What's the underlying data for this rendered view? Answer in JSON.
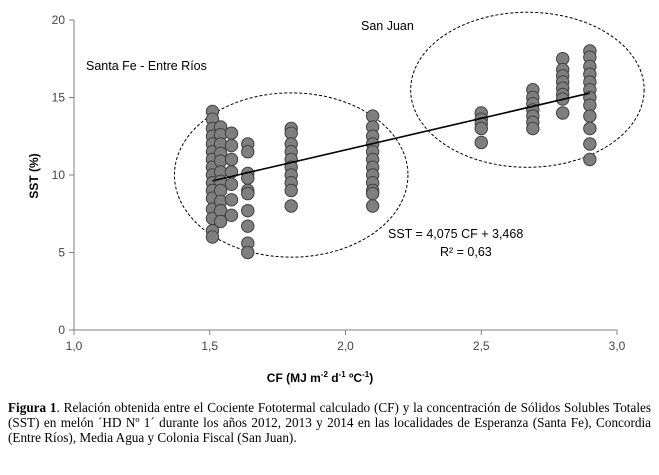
{
  "chart_data": {
    "type": "scatter",
    "xlabel": "CF (MJ m",
    "xlabel_sup1": "-2",
    "xlabel_mid1": " d",
    "xlabel_sup2": "-1",
    "xlabel_mid2": " ºC",
    "xlabel_sup3": "-1",
    "xlabel_end": ")",
    "ylabel": "SST (%)",
    "xlim": [
      1.0,
      3.0
    ],
    "ylim": [
      0,
      20
    ],
    "x_ticks": [
      "1,0",
      "1,5",
      "2,0",
      "2,5",
      "3,0"
    ],
    "y_ticks": [
      "0",
      "5",
      "10",
      "15",
      "20"
    ],
    "grid": false,
    "point_color": "#7f7f7f",
    "point_stroke": "#404040",
    "regression": {
      "slope": 4.075,
      "intercept": 3.468,
      "x_range": [
        1.51,
        2.9
      ]
    },
    "equation_text": "SST  = 4,075 CF + 3,468",
    "r2_text": "R² = 0,63",
    "groups": [
      {
        "label": "Santa Fe - Entre Ríos",
        "ellipse_center": [
          1.8,
          10.0
        ],
        "ellipse_radii": [
          0.43,
          5.3
        ]
      },
      {
        "label": "San Juan",
        "ellipse_center": [
          2.67,
          15.5
        ],
        "ellipse_radii": [
          0.43,
          5.0
        ]
      }
    ],
    "points": [
      [
        1.51,
        14.1
      ],
      [
        1.51,
        13.6
      ],
      [
        1.51,
        13.0
      ],
      [
        1.51,
        12.5
      ],
      [
        1.51,
        12.0
      ],
      [
        1.51,
        11.5
      ],
      [
        1.51,
        11.0
      ],
      [
        1.51,
        10.5
      ],
      [
        1.51,
        10.0
      ],
      [
        1.51,
        9.5
      ],
      [
        1.51,
        9.0
      ],
      [
        1.51,
        8.5
      ],
      [
        1.51,
        7.8
      ],
      [
        1.51,
        7.2
      ],
      [
        1.51,
        6.4
      ],
      [
        1.51,
        6.0
      ],
      [
        1.54,
        13.1
      ],
      [
        1.54,
        12.6
      ],
      [
        1.54,
        12.0
      ],
      [
        1.54,
        11.4
      ],
      [
        1.54,
        10.9
      ],
      [
        1.54,
        10.2
      ],
      [
        1.54,
        9.6
      ],
      [
        1.54,
        9.0
      ],
      [
        1.54,
        8.3
      ],
      [
        1.54,
        7.7
      ],
      [
        1.54,
        7.0
      ],
      [
        1.58,
        12.7
      ],
      [
        1.58,
        11.9
      ],
      [
        1.58,
        11.0
      ],
      [
        1.58,
        10.2
      ],
      [
        1.58,
        9.4
      ],
      [
        1.58,
        8.4
      ],
      [
        1.58,
        7.4
      ],
      [
        1.64,
        12.0
      ],
      [
        1.64,
        11.5
      ],
      [
        1.64,
        10.1
      ],
      [
        1.64,
        9.8
      ],
      [
        1.64,
        9.0
      ],
      [
        1.64,
        8.8
      ],
      [
        1.64,
        7.7
      ],
      [
        1.64,
        6.7
      ],
      [
        1.64,
        5.6
      ],
      [
        1.64,
        5.0
      ],
      [
        1.8,
        13.0
      ],
      [
        1.8,
        12.7
      ],
      [
        1.8,
        12.0
      ],
      [
        1.8,
        11.5
      ],
      [
        1.8,
        11.0
      ],
      [
        1.8,
        10.5
      ],
      [
        1.8,
        10.0
      ],
      [
        1.8,
        9.5
      ],
      [
        1.8,
        9.0
      ],
      [
        1.8,
        8.0
      ],
      [
        2.1,
        13.8
      ],
      [
        2.1,
        13.1
      ],
      [
        2.1,
        12.5
      ],
      [
        2.1,
        12.0
      ],
      [
        2.1,
        11.5
      ],
      [
        2.1,
        11.0
      ],
      [
        2.1,
        10.5
      ],
      [
        2.1,
        10.0
      ],
      [
        2.1,
        9.5
      ],
      [
        2.1,
        9.0
      ],
      [
        2.1,
        8.8
      ],
      [
        2.1,
        8.0
      ],
      [
        2.5,
        14.0
      ],
      [
        2.5,
        13.6
      ],
      [
        2.5,
        13.3
      ],
      [
        2.5,
        13.0
      ],
      [
        2.5,
        12.1
      ],
      [
        2.69,
        15.5
      ],
      [
        2.69,
        15.0
      ],
      [
        2.69,
        14.6
      ],
      [
        2.69,
        14.2
      ],
      [
        2.69,
        13.8
      ],
      [
        2.69,
        13.4
      ],
      [
        2.69,
        13.0
      ],
      [
        2.8,
        17.5
      ],
      [
        2.8,
        16.8
      ],
      [
        2.8,
        16.4
      ],
      [
        2.8,
        16.0
      ],
      [
        2.8,
        15.6
      ],
      [
        2.8,
        15.2
      ],
      [
        2.8,
        14.9
      ],
      [
        2.8,
        14.0
      ],
      [
        2.9,
        18.0
      ],
      [
        2.9,
        17.6
      ],
      [
        2.9,
        17.0
      ],
      [
        2.9,
        16.5
      ],
      [
        2.9,
        16.0
      ],
      [
        2.9,
        15.5
      ],
      [
        2.9,
        15.0
      ],
      [
        2.9,
        14.5
      ],
      [
        2.9,
        13.8
      ],
      [
        2.9,
        13.0
      ],
      [
        2.9,
        12.0
      ],
      [
        2.9,
        11.0
      ]
    ]
  },
  "caption": {
    "label": "Figura 1",
    "text": ". Relación obtenida entre el Cociente Fototermal calculado (CF) y la concentración de Sólidos Solubles Totales (SST) en melón ´HD Nº 1´ durante los años 2012, 2013 y 2014 en las localidades de Esperanza (Santa Fe), Concordia (Entre Ríos), Media Agua y Colonia Fiscal (San Juan)."
  }
}
